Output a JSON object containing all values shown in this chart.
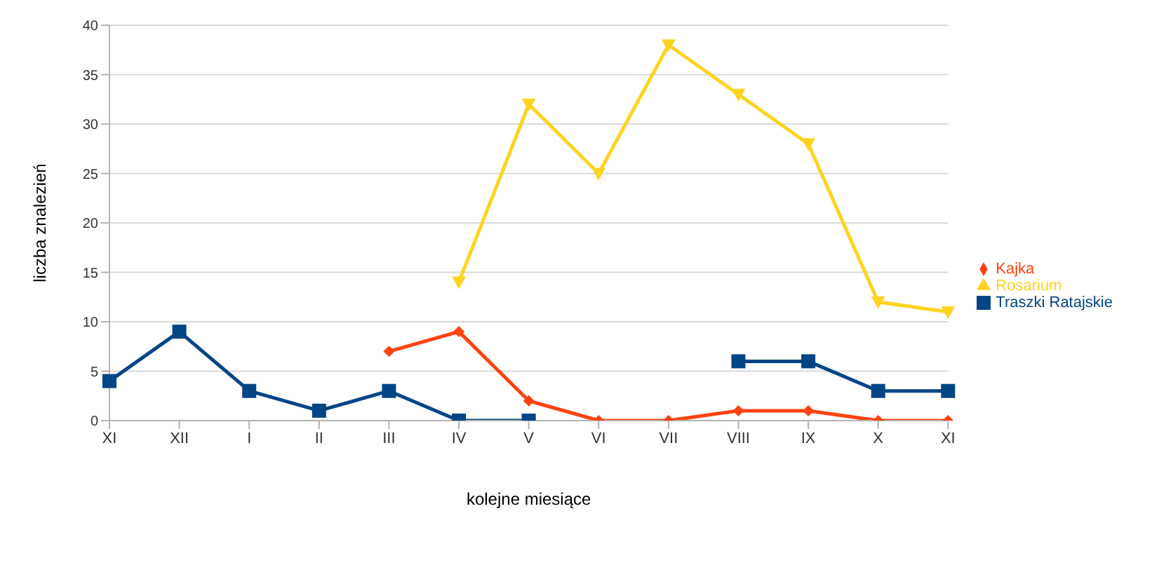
{
  "chart_data": {
    "type": "line",
    "xlabel": "kolejne miesiące",
    "ylabel": "liczba znalezień",
    "categories": [
      "XI",
      "XII",
      "I",
      "II",
      "III",
      "IV",
      "V",
      "VI",
      "VII",
      "VIII",
      "IX",
      "X",
      "XI"
    ],
    "ylim": [
      0,
      40
    ],
    "yticks": [
      0,
      5,
      10,
      15,
      20,
      25,
      30,
      35,
      40
    ],
    "grid": "y",
    "legend": "right",
    "series": [
      {
        "name": "Traszki Ratajskie",
        "color": "#004586",
        "marker": "square",
        "values": [
          4,
          9,
          3,
          1,
          3,
          0,
          0,
          null,
          null,
          6,
          6,
          3,
          3
        ]
      },
      {
        "name": "Kajka",
        "color": "#ff420e",
        "marker": "diamond",
        "values": [
          null,
          null,
          null,
          null,
          7,
          9,
          2,
          0,
          0,
          1,
          1,
          0,
          0
        ]
      },
      {
        "name": "Rosarium",
        "color": "#ffd320",
        "marker": "triangle",
        "values": [
          null,
          null,
          null,
          null,
          null,
          14,
          32,
          25,
          38,
          33,
          28,
          12,
          11
        ]
      }
    ]
  }
}
